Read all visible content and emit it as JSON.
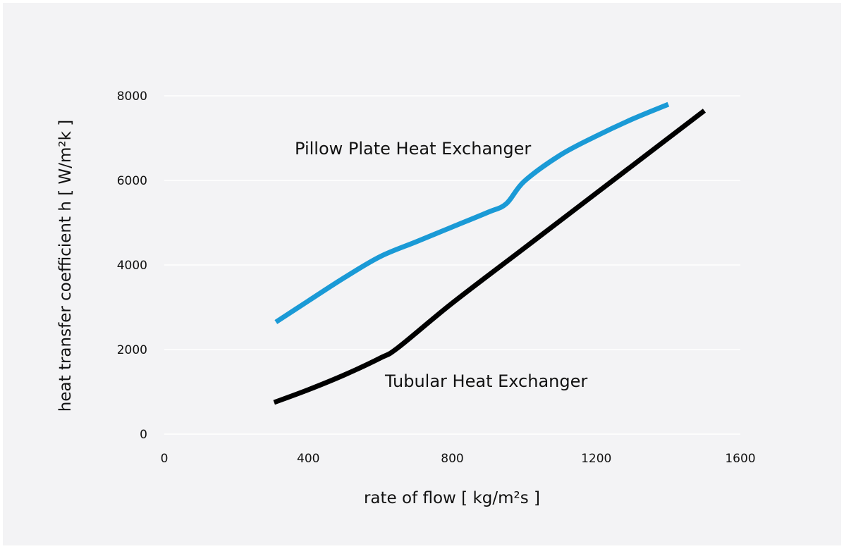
{
  "chart_data": {
    "type": "line",
    "xlabel": "rate of flow [ kg/m²s ]",
    "ylabel": "heat transfer coefficient h [ W/m²k ]",
    "xlim": [
      0,
      1600
    ],
    "ylim": [
      0,
      8000
    ],
    "xticks": [
      0,
      400,
      800,
      1200,
      1600
    ],
    "yticks": [
      0,
      2000,
      4000,
      6000,
      8000
    ],
    "grid": "horizontal",
    "series": [
      {
        "name": "Pillow Plate Heat Exchanger",
        "color": "#1a9ad6",
        "points": [
          [
            310,
            2650
          ],
          [
            400,
            3150
          ],
          [
            500,
            3700
          ],
          [
            600,
            4200
          ],
          [
            700,
            4550
          ],
          [
            800,
            4900
          ],
          [
            900,
            5250
          ],
          [
            950,
            5450
          ],
          [
            1000,
            5980
          ],
          [
            1100,
            6600
          ],
          [
            1200,
            7050
          ],
          [
            1300,
            7450
          ],
          [
            1400,
            7800
          ]
        ]
      },
      {
        "name": "Tubular Heat Exchanger",
        "color": "#000000",
        "points": [
          [
            305,
            750
          ],
          [
            400,
            1050
          ],
          [
            500,
            1400
          ],
          [
            600,
            1800
          ],
          [
            650,
            2050
          ],
          [
            800,
            3100
          ],
          [
            1000,
            4400
          ],
          [
            1200,
            5700
          ],
          [
            1400,
            7000
          ],
          [
            1500,
            7650
          ]
        ]
      }
    ]
  }
}
